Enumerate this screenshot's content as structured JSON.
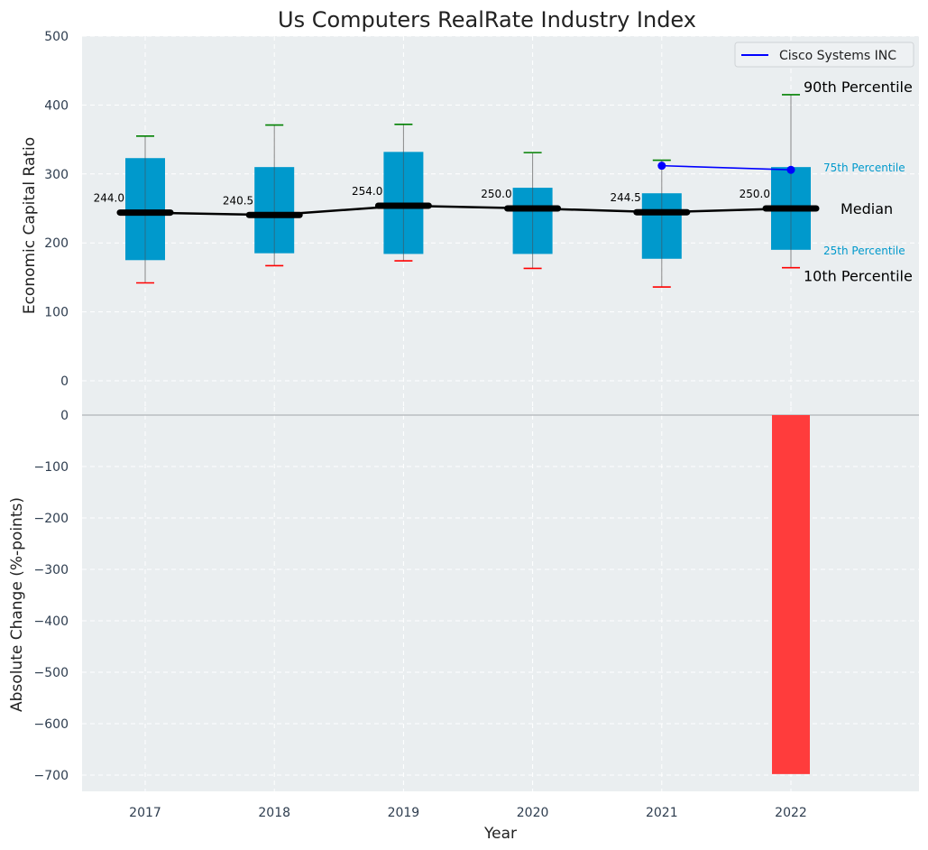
{
  "chart_data": {
    "type": "box",
    "title": "Us Computers RealRate Industry Index",
    "xlabel": "Year",
    "categories": [
      "2017",
      "2018",
      "2019",
      "2020",
      "2021",
      "2022"
    ],
    "top_panel": {
      "ylabel": "Economic Capital Ratio",
      "ylim": [
        0,
        500
      ],
      "yticks": [
        "0",
        "100",
        "200",
        "300",
        "400",
        "500"
      ],
      "boxes": [
        {
          "year": "2017",
          "p10": 142,
          "p25": 175,
          "median": 244.0,
          "p75": 323,
          "p90": 355,
          "median_label": "244.0"
        },
        {
          "year": "2018",
          "p10": 167,
          "p25": 185,
          "median": 240.5,
          "p75": 310,
          "p90": 371,
          "median_label": "240.5"
        },
        {
          "year": "2019",
          "p10": 174,
          "p25": 184,
          "median": 254.0,
          "p75": 332,
          "p90": 372,
          "median_label": "254.0"
        },
        {
          "year": "2020",
          "p10": 163,
          "p25": 184,
          "median": 250.0,
          "p75": 280,
          "p90": 331,
          "median_label": "250.0"
        },
        {
          "year": "2021",
          "p10": 136,
          "p25": 177,
          "median": 244.5,
          "p75": 272,
          "p90": 320,
          "median_label": "244.5"
        },
        {
          "year": "2022",
          "p10": 164,
          "p25": 190,
          "median": 250.0,
          "p75": 310,
          "p90": 415,
          "median_label": "250.0"
        }
      ],
      "series": [
        {
          "name": "Cisco Systems INC",
          "x": [
            "2021",
            "2022"
          ],
          "values": [
            312,
            306
          ],
          "color": "#0000ff"
        }
      ],
      "annotations": {
        "p90": "90th Percentile",
        "p75": "75th Percentile",
        "median": "Median",
        "p25": "25th Percentile",
        "p10": "10th Percentile"
      },
      "legend_placement": "top-right"
    },
    "bottom_panel": {
      "type": "bar",
      "ylabel": "Absolute Change (%-points)",
      "ylim": [
        -730,
        0
      ],
      "yticks": [
        "0",
        "−100",
        "−200",
        "−300",
        "−400",
        "−500",
        "−600",
        "−700"
      ],
      "values": [
        {
          "year": "2022",
          "value": -698
        }
      ],
      "bar_color": "#ff3c3c"
    },
    "grid": true,
    "colors": {
      "plot_bg": "#eaeef0",
      "box": "#0099cc",
      "median_line": "#000000",
      "whisker_top": "#008000",
      "whisker_bottom": "#ff0000",
      "label_teal": "#0099cc",
      "axis_text": "#2e3d4f"
    }
  }
}
